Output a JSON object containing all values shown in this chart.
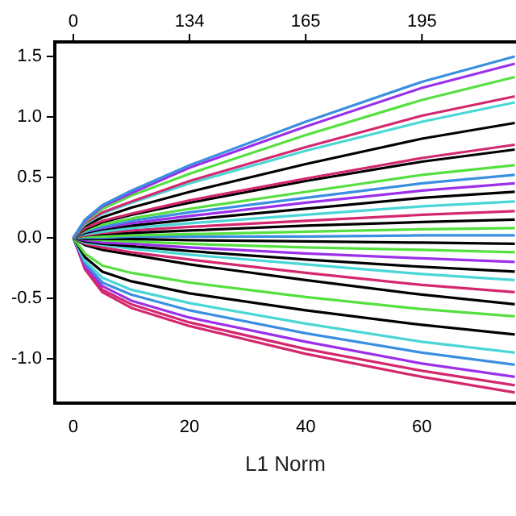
{
  "chart_data": {
    "type": "line",
    "xlabel": "L1 Norm",
    "x": [
      0,
      2,
      5,
      10,
      20,
      40,
      60,
      76
    ],
    "xlim": [
      -3.2,
      76.2
    ],
    "ylim": [
      -1.37,
      1.62
    ],
    "xticks": [
      0,
      20,
      40,
      60
    ],
    "yticks": [
      {
        "value": -1,
        "label": "-1.0"
      },
      {
        "value": -0.5,
        "label": "-0.5"
      },
      {
        "value": 0,
        "label": "0.0"
      },
      {
        "value": 0.5,
        "label": "0.5"
      },
      {
        "value": 1,
        "label": "1.0"
      },
      {
        "value": 1.5,
        "label": "1.5"
      }
    ],
    "annotations": [
      "0",
      "134",
      "165",
      "195"
    ],
    "series": [
      {
        "color": "#3b8fe0",
        "values": [
          0,
          0.15,
          0.27,
          0.39,
          0.6,
          0.96,
          1.29,
          1.5
        ]
      },
      {
        "color": "#9b30e8",
        "values": [
          0,
          0.14,
          0.26,
          0.37,
          0.58,
          0.92,
          1.24,
          1.44
        ]
      },
      {
        "color": "#55e040",
        "values": [
          0,
          0.13,
          0.24,
          0.35,
          0.53,
          0.85,
          1.14,
          1.33
        ]
      },
      {
        "color": "#d4286e",
        "values": [
          0,
          0.12,
          0.21,
          0.3,
          0.47,
          0.75,
          1.01,
          1.17
        ]
      },
      {
        "color": "#4ad6d6",
        "values": [
          0,
          0.11,
          0.2,
          0.29,
          0.45,
          0.72,
          0.96,
          1.12
        ]
      },
      {
        "color": "#000000",
        "values": [
          0,
          0.1,
          0.17,
          0.25,
          0.38,
          0.61,
          0.82,
          0.95
        ]
      },
      {
        "color": "#d4286e",
        "values": [
          0,
          0.08,
          0.14,
          0.2,
          0.31,
          0.49,
          0.66,
          0.77
        ]
      },
      {
        "color": "#000000",
        "values": [
          0,
          0.07,
          0.13,
          0.19,
          0.29,
          0.47,
          0.63,
          0.73
        ]
      },
      {
        "color": "#55e040",
        "values": [
          0,
          0.06,
          0.11,
          0.16,
          0.24,
          0.38,
          0.52,
          0.6
        ]
      },
      {
        "color": "#3b8fe0",
        "values": [
          0,
          0.05,
          0.09,
          0.14,
          0.21,
          0.33,
          0.45,
          0.52
        ]
      },
      {
        "color": "#9b30e8",
        "values": [
          0,
          0.05,
          0.08,
          0.12,
          0.18,
          0.29,
          0.39,
          0.45
        ]
      },
      {
        "color": "#000000",
        "values": [
          0,
          0.04,
          0.07,
          0.1,
          0.15,
          0.24,
          0.33,
          0.38
        ]
      },
      {
        "color": "#4ad6d6",
        "values": [
          0,
          0.03,
          0.05,
          0.08,
          0.12,
          0.19,
          0.26,
          0.3
        ]
      },
      {
        "color": "#d4286e",
        "values": [
          0,
          0.02,
          0.04,
          0.06,
          0.09,
          0.14,
          0.19,
          0.22
        ]
      },
      {
        "color": "#000000",
        "values": [
          0,
          0.02,
          0.03,
          0.04,
          0.06,
          0.1,
          0.13,
          0.15
        ]
      },
      {
        "color": "#55e040",
        "values": [
          0,
          0.01,
          0.01,
          0.02,
          0.03,
          0.05,
          0.07,
          0.08
        ]
      },
      {
        "color": "#3b8fe0",
        "values": [
          0,
          0,
          0,
          0.01,
          0.01,
          0.01,
          0.02,
          0.02
        ]
      },
      {
        "color": "#000000",
        "values": [
          0,
          -0.01,
          -0.01,
          -0.01,
          -0.02,
          -0.03,
          -0.04,
          -0.05
        ]
      },
      {
        "color": "#55e040",
        "values": [
          0,
          -0.01,
          -0.02,
          -0.03,
          -0.05,
          -0.08,
          -0.1,
          -0.12
        ]
      },
      {
        "color": "#9b30e8",
        "values": [
          0,
          -0.02,
          -0.04,
          -0.05,
          -0.08,
          -0.13,
          -0.17,
          -0.2
        ]
      },
      {
        "color": "#000000",
        "values": [
          0,
          -0.03,
          -0.05,
          -0.07,
          -0.11,
          -0.18,
          -0.24,
          -0.28
        ]
      },
      {
        "color": "#4ad6d6",
        "values": [
          0,
          -0.04,
          -0.06,
          -0.09,
          -0.14,
          -0.22,
          -0.3,
          -0.35
        ]
      },
      {
        "color": "#d4286e",
        "values": [
          0,
          -0.05,
          -0.08,
          -0.12,
          -0.18,
          -0.29,
          -0.39,
          -0.45
        ]
      },
      {
        "color": "#000000",
        "values": [
          0,
          -0.06,
          -0.1,
          -0.14,
          -0.22,
          -0.35,
          -0.47,
          -0.55
        ]
      },
      {
        "color": "#55e040",
        "values": [
          0,
          -0.13,
          -0.23,
          -0.29,
          -0.37,
          -0.49,
          -0.59,
          -0.65
        ]
      },
      {
        "color": "#000000",
        "values": [
          0,
          -0.16,
          -0.28,
          -0.36,
          -0.46,
          -0.6,
          -0.72,
          -0.8
        ]
      },
      {
        "color": "#4ad6d6",
        "values": [
          0,
          -0.19,
          -0.33,
          -0.43,
          -0.54,
          -0.71,
          -0.86,
          -0.95
        ]
      },
      {
        "color": "#3b8fe0",
        "values": [
          0,
          -0.21,
          -0.37,
          -0.47,
          -0.6,
          -0.79,
          -0.95,
          -1.05
        ]
      },
      {
        "color": "#9b30e8",
        "values": [
          0,
          -0.23,
          -0.4,
          -0.52,
          -0.66,
          -0.86,
          -1.04,
          -1.15
        ]
      },
      {
        "color": "#d4286e",
        "values": [
          0,
          -0.24,
          -0.43,
          -0.55,
          -0.7,
          -0.92,
          -1.1,
          -1.22
        ]
      },
      {
        "color": "#d4286e",
        "values": [
          0,
          -0.26,
          -0.45,
          -0.58,
          -0.73,
          -0.96,
          -1.15,
          -1.28
        ]
      }
    ]
  }
}
